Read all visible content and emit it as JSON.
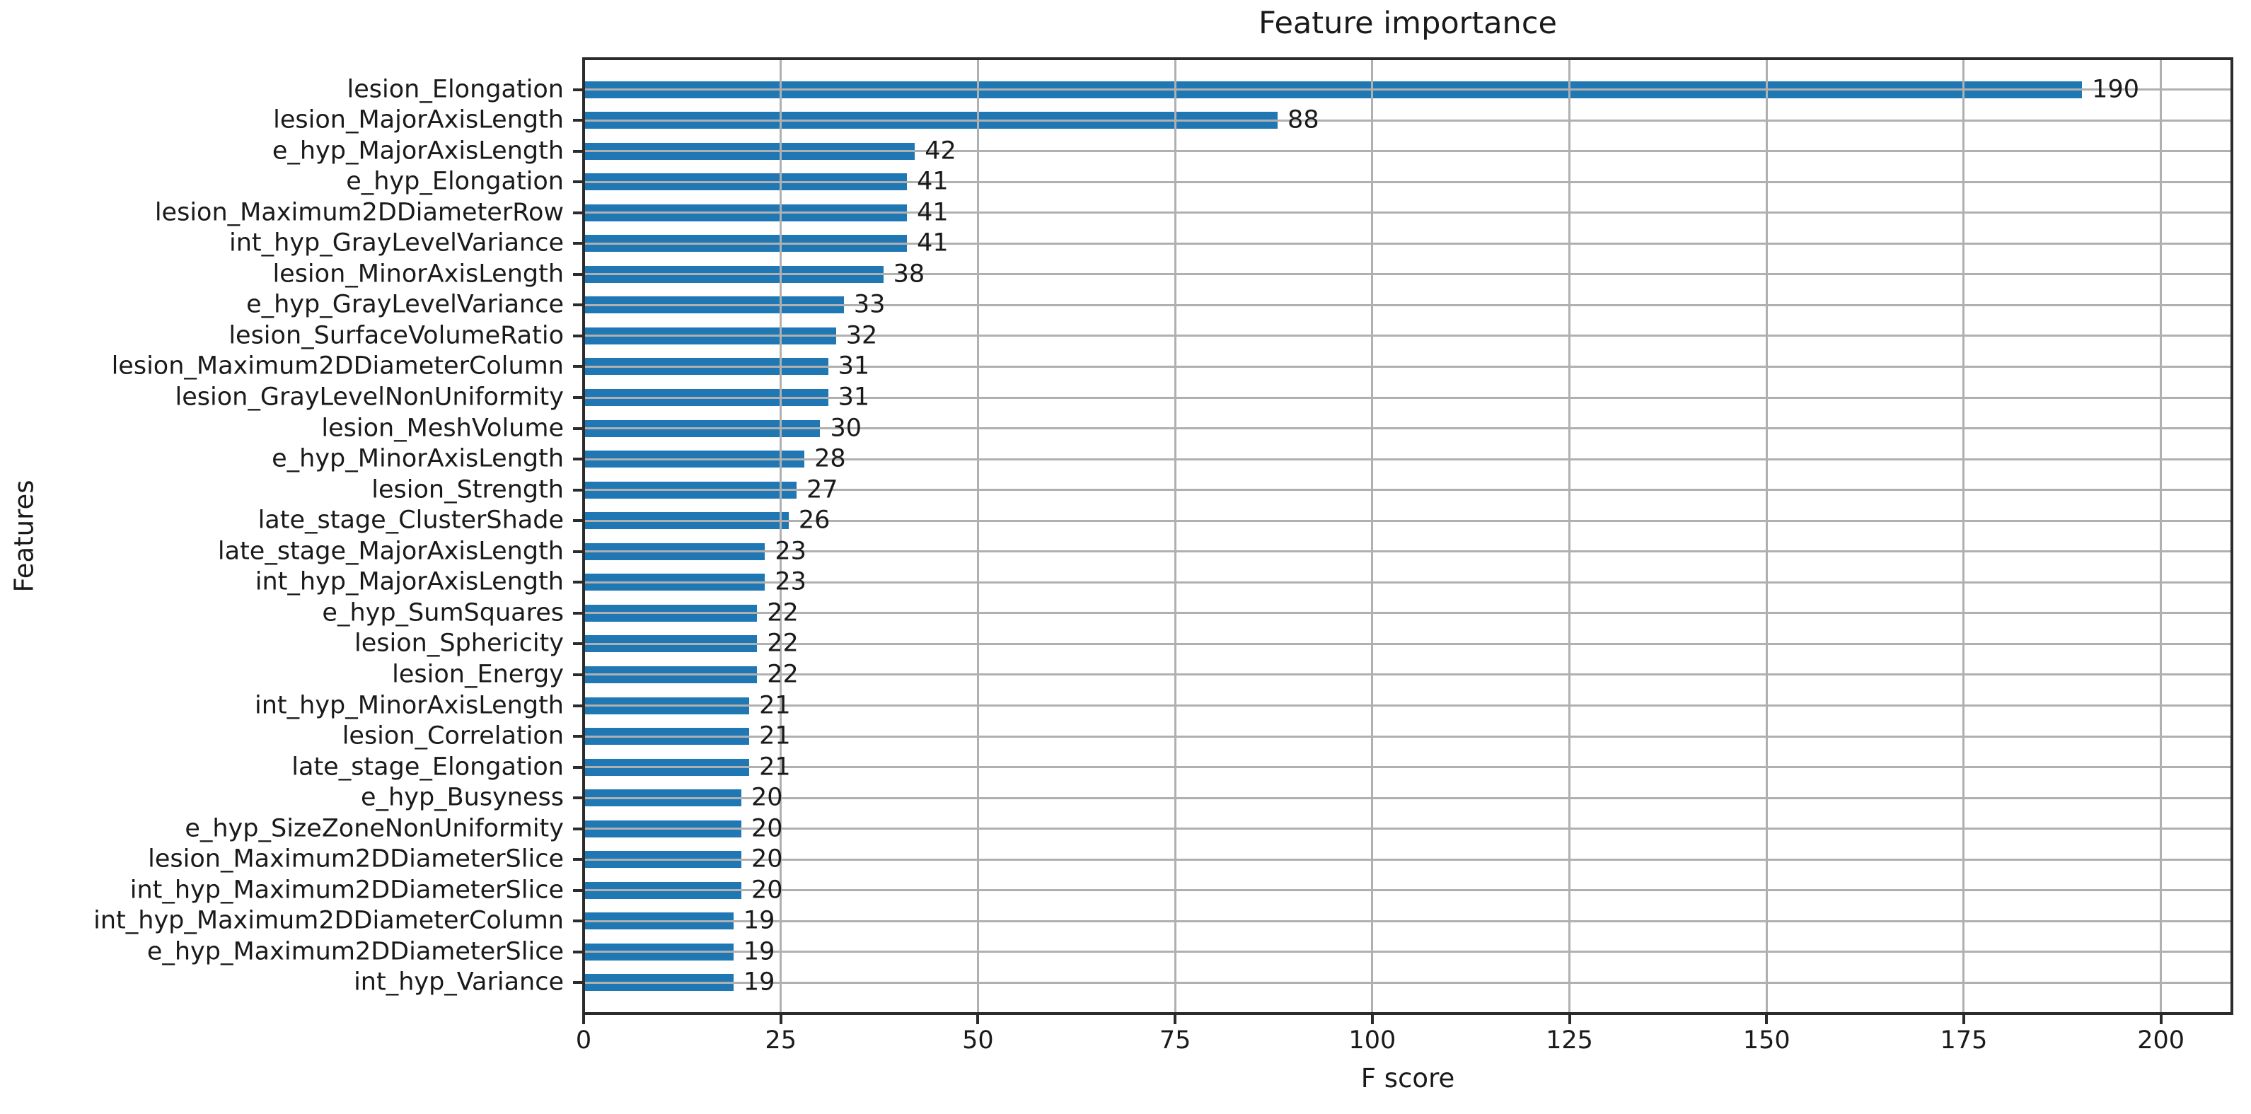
{
  "chart_data": {
    "type": "bar",
    "orientation": "horizontal",
    "title": "Feature importance",
    "xlabel": "F score",
    "ylabel": "Features",
    "categories": [
      "lesion_Elongation",
      "lesion_MajorAxisLength",
      "e_hyp_MajorAxisLength",
      "e_hyp_Elongation",
      "lesion_Maximum2DDiameterRow",
      "int_hyp_GrayLevelVariance",
      "lesion_MinorAxisLength",
      "e_hyp_GrayLevelVariance",
      "lesion_SurfaceVolumeRatio",
      "lesion_Maximum2DDiameterColumn",
      "lesion_GrayLevelNonUniformity",
      "lesion_MeshVolume",
      "e_hyp_MinorAxisLength",
      "lesion_Strength",
      "late_stage_ClusterShade",
      "late_stage_MajorAxisLength",
      "int_hyp_MajorAxisLength",
      "e_hyp_SumSquares",
      "lesion_Sphericity",
      "lesion_Energy",
      "int_hyp_MinorAxisLength",
      "lesion_Correlation",
      "late_stage_Elongation",
      "e_hyp_Busyness",
      "e_hyp_SizeZoneNonUniformity",
      "lesion_Maximum2DDiameterSlice",
      "int_hyp_Maximum2DDiameterSlice",
      "int_hyp_Maximum2DDiameterColumn",
      "e_hyp_Maximum2DDiameterSlice",
      "int_hyp_Variance"
    ],
    "values": [
      190,
      88,
      42,
      41,
      41,
      41,
      38,
      33,
      32,
      31,
      31,
      30,
      28,
      27,
      26,
      23,
      23,
      22,
      22,
      22,
      21,
      21,
      21,
      20,
      20,
      20,
      20,
      19,
      19,
      19
    ],
    "x_ticks": [
      0,
      25,
      50,
      75,
      100,
      125,
      150,
      175,
      200
    ],
    "xlim": [
      0,
      209
    ],
    "grid": true,
    "value_labels": true,
    "legend": "none",
    "bar_color": "#1f77b4",
    "grid_color": "#b0b0b0",
    "spine_color": "#2b2b2b",
    "text_color": "#1a1a1a"
  }
}
